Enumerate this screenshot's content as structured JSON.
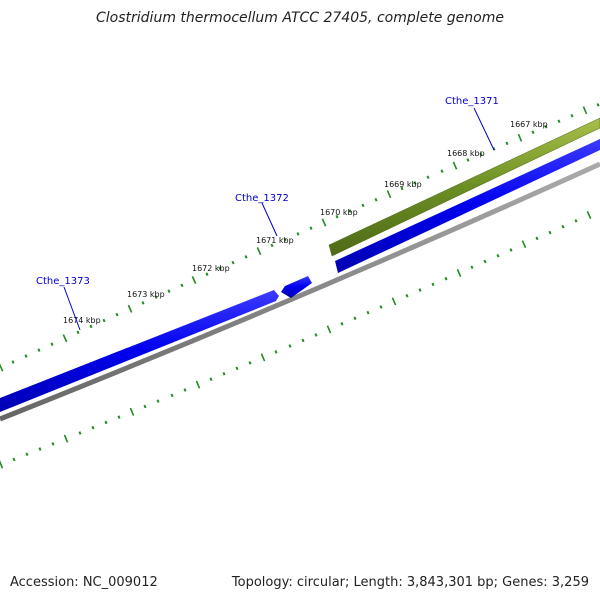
{
  "title": "Clostridium thermocellum ATCC 27405, complete genome",
  "footer": {
    "accession": "Accession: NC_009012",
    "summary": "Topology: circular; Length: 3,843,301 bp; Genes: 3,259"
  },
  "scale_ticks": [
    "1667 kbp",
    "1668 kbp",
    "1669 kbp",
    "1670 kbp",
    "1671 kbp",
    "1672 kbp",
    "1673 kbp",
    "1674 kbp"
  ],
  "genes": [
    {
      "label": "Cthe_1371",
      "strand": "forward",
      "color": "#6b8e23"
    },
    {
      "label": "Cthe_1372",
      "strand": "reverse",
      "color": "#0000ee"
    },
    {
      "label": "Cthe_1373",
      "strand": "reverse",
      "color": "#0000ee"
    }
  ],
  "colors": {
    "tick_dots": "#228b22",
    "backbone": "#888888",
    "gene_label": "#0000cc",
    "forward_feature": "#6b8e23",
    "reverse_feature": "#0000ee"
  }
}
